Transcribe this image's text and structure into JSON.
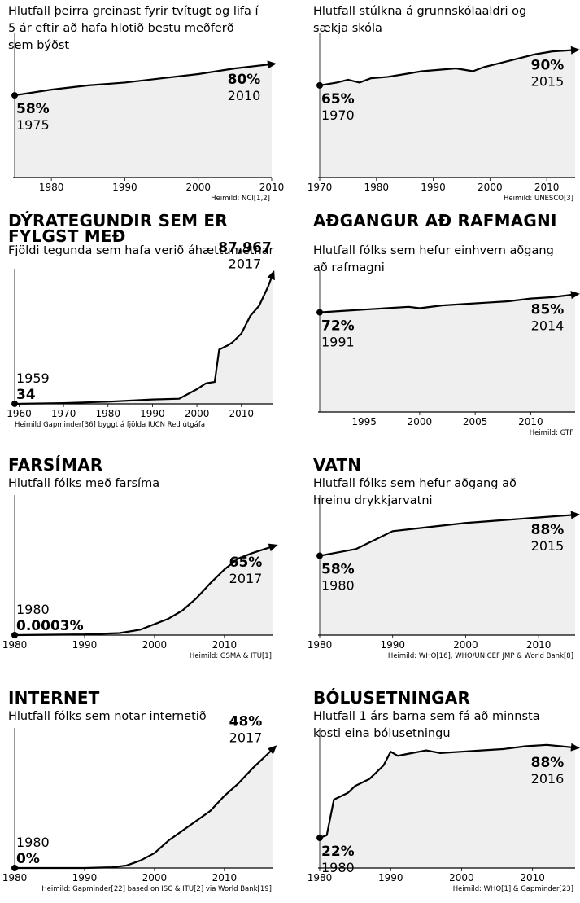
{
  "charts": [
    {
      "title": "",
      "subtitle": [
        "Hlutfall þeirra greinast fyrir tvítugt og lifa í",
        "5 ár eftir að hafa hlotið bestu meðferð",
        "sem býðst"
      ],
      "source": "Heimild: NCI[1,2]",
      "chart_data": {
        "type": "area",
        "xlim": [
          1975,
          2010
        ],
        "ylim": [
          0,
          100
        ],
        "x": [
          1975,
          1980,
          1985,
          1990,
          1995,
          2000,
          2005,
          2010
        ],
        "y": [
          58,
          62,
          65,
          67,
          70,
          73,
          77,
          80
        ],
        "xticks": [
          "1980",
          "1990",
          "2000",
          "2010"
        ],
        "start": {
          "value": "58%",
          "year": "1975"
        },
        "end": {
          "value": "80%",
          "year": "2010"
        }
      }
    },
    {
      "title": "",
      "subtitle": [
        "Hlutfall stúlkna á grunnskólaaldri og",
        "sækja skóla"
      ],
      "source": "Heimild: UNESCO[3]",
      "chart_data": {
        "type": "area",
        "xlim": [
          1970,
          2015
        ],
        "ylim": [
          0,
          100
        ],
        "x": [
          1970,
          1973,
          1975,
          1977,
          1979,
          1982,
          1985,
          1988,
          1991,
          1994,
          1997,
          1999,
          2002,
          2005,
          2008,
          2011,
          2015
        ],
        "y": [
          65,
          67,
          69,
          67,
          70,
          71,
          73,
          75,
          76,
          77,
          75,
          78,
          81,
          84,
          87,
          89,
          90
        ],
        "xticks": [
          "1970",
          "1980",
          "1990",
          "2000",
          "2010"
        ],
        "start": {
          "value": "65%",
          "year": "1970"
        },
        "end": {
          "value": "90%",
          "year": "2015"
        }
      }
    },
    {
      "title": [
        "DÝRATEGUNDIR SEM ER",
        "FYLGST MEÐ"
      ],
      "subtitle": [
        "Fjöldi tegunda sem hafa verið áhættumetnar"
      ],
      "source": "Heimild Gapminder[36] byggt á fjölda IUCN Red útgáfa",
      "chart_data": {
        "type": "area",
        "xlim": [
          1959,
          2017
        ],
        "ylim": [
          0,
          90000
        ],
        "x": [
          1959,
          1970,
          1980,
          1990,
          1996,
          2000,
          2002,
          2004,
          2005,
          2007,
          2008,
          2010,
          2012,
          2014,
          2016,
          2017
        ],
        "y": [
          34,
          500,
          1500,
          3000,
          3500,
          10000,
          14000,
          15000,
          37000,
          40000,
          42000,
          48000,
          60000,
          67000,
          80000,
          87967
        ],
        "xticks": [
          "1960",
          "1970",
          "1980",
          "1990",
          "2000",
          "2010"
        ],
        "start": {
          "value": "34",
          "year": "1959"
        },
        "end": {
          "value": "87,967",
          "year": "2017"
        }
      }
    },
    {
      "title": [
        "AÐGANGUR AÐ RAFMAGNI"
      ],
      "subtitle": [
        "Hlutfall fólks sem hefur einhvern aðgang",
        "að rafmagni"
      ],
      "source": "Heimild: GTF",
      "chart_data": {
        "type": "area",
        "xlim": [
          1991,
          2014
        ],
        "ylim": [
          0,
          100
        ],
        "x": [
          1991,
          1993,
          1995,
          1997,
          1999,
          2000,
          2002,
          2004,
          2006,
          2008,
          2010,
          2012,
          2014
        ],
        "y": [
          72,
          73,
          74,
          75,
          76,
          75,
          77,
          78,
          79,
          80,
          82,
          83,
          85
        ],
        "xticks": [
          "1995",
          "2000",
          "2005",
          "2010"
        ],
        "start": {
          "value": "72%",
          "year": "1991"
        },
        "end": {
          "value": "85%",
          "year": "2014"
        }
      }
    },
    {
      "title": [
        "FARSÍMAR"
      ],
      "subtitle": [
        "Hlutfall fólks með farsíma"
      ],
      "source": "Heimild: GSMA & ITU[1]",
      "chart_data": {
        "type": "area",
        "xlim": [
          1980,
          2017
        ],
        "ylim": [
          0,
          100
        ],
        "x": [
          1980,
          1990,
          1995,
          1998,
          2000,
          2002,
          2004,
          2006,
          2008,
          2010,
          2012,
          2014,
          2017
        ],
        "y": [
          0.0003,
          0.5,
          1.5,
          4,
          8,
          12,
          18,
          27,
          38,
          48,
          56,
          60,
          65
        ],
        "xticks": [
          "1980",
          "1990",
          "2000",
          "2010"
        ],
        "start": {
          "value": "0.0003%",
          "year": "1980"
        },
        "end": {
          "value": "65%",
          "year": "2017"
        }
      }
    },
    {
      "title": [
        "VATN"
      ],
      "subtitle": [
        "Hlutfall fólks sem hefur aðgang að",
        "hreinu drykkjarvatni"
      ],
      "source": "Heimild: WHO[16], WHO/UNICEF JMP & World Bank[8]",
      "chart_data": {
        "type": "area",
        "xlim": [
          1980,
          2015
        ],
        "ylim": [
          0,
          100
        ],
        "x": [
          1980,
          1985,
          1990,
          1995,
          2000,
          2005,
          2010,
          2015
        ],
        "y": [
          58,
          63,
          76,
          79,
          82,
          84,
          86,
          88
        ],
        "xticks": [
          "1980",
          "1990",
          "2000",
          "2010"
        ],
        "start": {
          "value": "58%",
          "year": "1980"
        },
        "end": {
          "value": "88%",
          "year": "2015"
        }
      }
    },
    {
      "title": [
        "INTERNET"
      ],
      "subtitle": [
        "Hlutfall fólks sem notar internetið"
      ],
      "source": "Heimild: Gapminder[22] based on ISC & ITU[2] via World Bank[19]",
      "chart_data": {
        "type": "area",
        "xlim": [
          1980,
          2017
        ],
        "ylim": [
          0,
          55
        ],
        "x": [
          1980,
          1990,
          1994,
          1996,
          1998,
          2000,
          2002,
          2004,
          2006,
          2008,
          2010,
          2012,
          2014,
          2017
        ],
        "y": [
          0,
          0,
          0.3,
          1,
          3,
          6,
          11,
          15,
          19,
          23,
          29,
          34,
          40,
          48
        ],
        "xticks": [
          "1980",
          "1990",
          "2000",
          "2010"
        ],
        "start": {
          "value": "0%",
          "year": "1980"
        },
        "end": {
          "value": "48%",
          "year": "2017"
        }
      }
    },
    {
      "title": [
        "BÓLUSETNINGAR"
      ],
      "subtitle": [
        "Hlutfall 1 árs barna sem fá að minnsta",
        "kosti eina bólusetningu"
      ],
      "source": "Heimild: WHO[1] & Gapminder[23]",
      "chart_data": {
        "type": "area",
        "xlim": [
          1980,
          2016
        ],
        "ylim": [
          0,
          100
        ],
        "x": [
          1980,
          1981,
          1982,
          1984,
          1985,
          1987,
          1988,
          1989,
          1990,
          1991,
          1993,
          1995,
          1997,
          2000,
          2003,
          2006,
          2009,
          2012,
          2014,
          2016
        ],
        "y": [
          22,
          24,
          50,
          55,
          60,
          65,
          70,
          75,
          85,
          82,
          84,
          86,
          84,
          85,
          86,
          87,
          89,
          90,
          89,
          88
        ],
        "xticks": [
          "1980",
          "1990",
          "2000",
          "2010"
        ],
        "start": {
          "value": "22%",
          "year": "1980"
        },
        "end": {
          "value": "88%",
          "year": "2016"
        }
      }
    }
  ]
}
